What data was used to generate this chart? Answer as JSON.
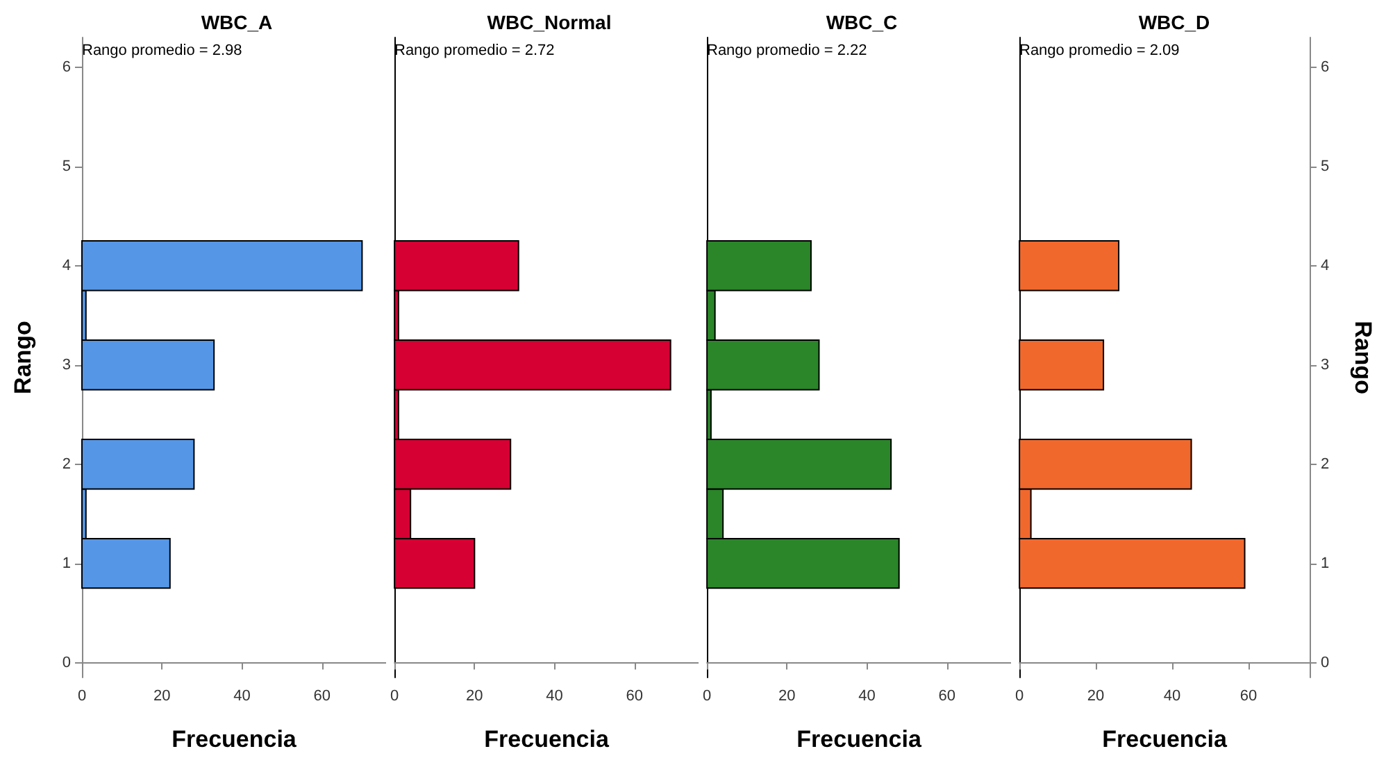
{
  "chart_data": [
    {
      "type": "histogram",
      "orientation": "horizontal",
      "title": "WBC_A",
      "xlabel": "Frecuencia",
      "ylabel": "Rango",
      "annotations": [
        "Rango promedio = 2.98"
      ],
      "bins": [
        0.75,
        1.25,
        1.75,
        2.25,
        2.75,
        3.25,
        3.75,
        4.25
      ],
      "values": [
        22,
        1,
        28,
        0,
        33,
        1,
        70
      ],
      "color": "#5596e6",
      "xlim": [
        0,
        76
      ],
      "xticks": [
        0,
        20,
        40,
        60
      ],
      "ylim": [
        -0.15,
        6.3
      ],
      "yticks": [
        0,
        1,
        2,
        3,
        4,
        5,
        6
      ],
      "grid": false
    },
    {
      "type": "histogram",
      "orientation": "horizontal",
      "title": "WBC_Normal",
      "xlabel": "Frecuencia",
      "annotations": [
        "Rango promedio = 2.72"
      ],
      "bins": [
        0.75,
        1.25,
        1.75,
        2.25,
        2.75,
        3.25,
        3.75,
        4.25
      ],
      "values": [
        20,
        4,
        29,
        1,
        69,
        1,
        31
      ],
      "color": "#d60032",
      "xlim": [
        0,
        76
      ],
      "xticks": [
        0,
        20,
        40,
        60
      ],
      "ylim": [
        -0.15,
        6.3
      ],
      "tick_labels": "x",
      "grid": false
    },
    {
      "type": "histogram",
      "orientation": "horizontal",
      "title": "WBC_C",
      "xlabel": "Frecuencia",
      "annotations": [
        "Rango promedio = 2.22"
      ],
      "bins": [
        0.75,
        1.25,
        1.75,
        2.25,
        2.75,
        3.25,
        3.75,
        4.25
      ],
      "values": [
        48,
        4,
        46,
        1,
        28,
        2,
        26
      ],
      "color": "#2a8629",
      "xlim": [
        0,
        76
      ],
      "xticks": [
        0,
        20,
        40,
        60
      ],
      "ylim": [
        -0.15,
        6.3
      ],
      "tick_labels": "x",
      "grid": false
    },
    {
      "type": "histogram",
      "orientation": "horizontal",
      "title": "WBC_D",
      "xlabel": "Frecuencia",
      "ylabel": "Rango",
      "annotations": [
        "Rango promedio = 2.09"
      ],
      "bins": [
        0.75,
        1.25,
        1.75,
        2.25,
        2.75,
        3.25,
        3.75,
        4.25
      ],
      "values": [
        59,
        3,
        45,
        0,
        22,
        0,
        26
      ],
      "color": "#f1682c",
      "xlim": [
        0,
        76
      ],
      "xticks": [
        0,
        20,
        40,
        60
      ],
      "ylim": [
        -0.15,
        6.3
      ],
      "yticks": [
        0,
        1,
        2,
        3,
        4,
        5,
        6
      ],
      "grid": false
    }
  ]
}
